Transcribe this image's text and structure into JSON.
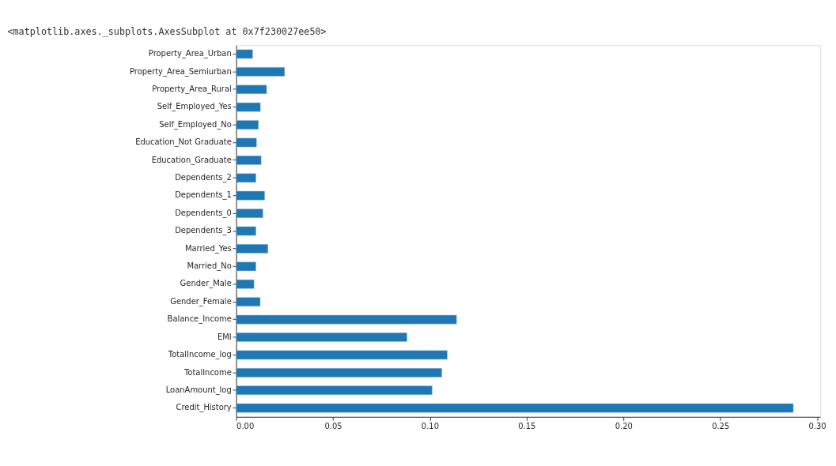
{
  "chart_data": {
    "type": "bar",
    "orientation": "horizontal",
    "annotations": [
      "<matplotlib.axes._subplots.AxesSubplot at 0x7f230027ee50>"
    ],
    "categories": [
      "Property_Area_Urban",
      "Property_Area_Semiurban",
      "Property_Area_Rural",
      "Self_Employed_Yes",
      "Self_Employed_No",
      "Education_Not Graduate",
      "Education_Graduate",
      "Dependents_2",
      "Dependents_1",
      "Dependents_0",
      "Dependents_3",
      "Married_Yes",
      "Married_No",
      "Gender_Male",
      "Gender_Female",
      "Balance_Income",
      "EMI",
      "TotalIncome_log",
      "TotalIncome",
      "LoanAmount_log",
      "Credit_History"
    ],
    "values": [
      0.0085,
      0.025,
      0.0157,
      0.0125,
      0.0115,
      0.0105,
      0.0129,
      0.0102,
      0.0147,
      0.0138,
      0.0102,
      0.0164,
      0.0102,
      0.0092,
      0.0124,
      0.1138,
      0.0882,
      0.109,
      0.1062,
      0.1012,
      0.2877
    ],
    "color": "#1f77b4",
    "xlim": [
      0,
      0.3016
    ],
    "xticks": [
      {
        "value": 0,
        "label": "0.00"
      },
      {
        "value": 0.05,
        "label": "0.05"
      },
      {
        "value": 0.1,
        "label": "0.10"
      },
      {
        "value": 0.15,
        "label": "0.15"
      },
      {
        "value": 0.2,
        "label": "0.20"
      },
      {
        "value": 0.25,
        "label": "0.25"
      },
      {
        "value": 0.3,
        "label": "0.30"
      }
    ],
    "grid": false
  }
}
